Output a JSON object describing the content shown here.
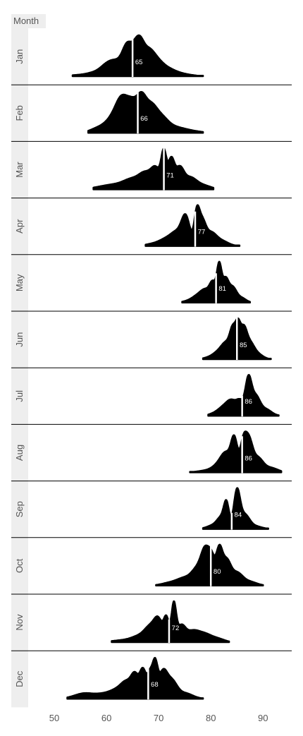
{
  "facet_header": "Month",
  "chart_data": {
    "type": "area",
    "subtype": "ridgeline-density",
    "facet_title": "Month",
    "x_ticks": [
      50,
      60,
      70,
      80,
      90
    ],
    "xlim": [
      45,
      95.5
    ],
    "median_label_color": "#ffffff",
    "fill_color": "#000000",
    "strip_color": "#eeeeee",
    "series": [
      {
        "name": "Jan",
        "range": [
          53.5,
          78.5
        ],
        "median": 65,
        "label": "65",
        "peaks": [
          [
            55,
            0.03,
            2
          ],
          [
            58,
            0.08,
            1.5
          ],
          [
            60,
            0.18,
            1.2
          ],
          [
            62,
            0.32,
            1.4
          ],
          [
            64,
            0.62,
            0.9
          ],
          [
            65.5,
            0.45,
            0.8
          ],
          [
            66.5,
            0.58,
            0.8
          ],
          [
            68,
            0.45,
            1
          ],
          [
            69.5,
            0.3,
            1.2
          ],
          [
            71.5,
            0.15,
            1.5
          ],
          [
            74,
            0.06,
            2
          ]
        ]
      },
      {
        "name": "Feb",
        "range": [
          56.5,
          78.5
        ],
        "median": 66,
        "label": "66",
        "peaks": [
          [
            58.5,
            0.08,
            1.5
          ],
          [
            61,
            0.18,
            1.3
          ],
          [
            63,
            0.52,
            1.2
          ],
          [
            65,
            0.38,
            1
          ],
          [
            66.7,
            0.48,
            0.9
          ],
          [
            68.5,
            0.38,
            1.1
          ],
          [
            70.5,
            0.22,
            1.3
          ],
          [
            73,
            0.08,
            1.8
          ],
          [
            76,
            0.03,
            2
          ]
        ]
      },
      {
        "name": "Mar",
        "range": [
          57.5,
          80.5
        ],
        "median": 71,
        "label": "71",
        "peaks": [
          [
            59,
            0.04,
            2
          ],
          [
            62,
            0.08,
            2
          ],
          [
            65,
            0.18,
            1.6
          ],
          [
            67.5,
            0.28,
            1.2
          ],
          [
            69.5,
            0.38,
            0.9
          ],
          [
            71,
            0.68,
            0.5
          ],
          [
            72.4,
            0.58,
            0.6
          ],
          [
            74,
            0.4,
            0.8
          ],
          [
            76,
            0.22,
            1.2
          ],
          [
            78.5,
            0.08,
            1.5
          ]
        ]
      },
      {
        "name": "Apr",
        "range": [
          67.5,
          85.5
        ],
        "median": 77,
        "label": "77",
        "peaks": [
          [
            69,
            0.05,
            1.5
          ],
          [
            71.5,
            0.15,
            1.3
          ],
          [
            73.5,
            0.28,
            1.1
          ],
          [
            75.2,
            0.65,
            0.8
          ],
          [
            77.3,
            0.7,
            0.5
          ],
          [
            78.3,
            0.55,
            0.7
          ],
          [
            80,
            0.28,
            1
          ],
          [
            82,
            0.12,
            1.3
          ]
        ]
      },
      {
        "name": "May",
        "range": [
          74.5,
          87.5
        ],
        "median": 81,
        "label": "81",
        "peaks": [
          [
            76,
            0.05,
            1.2
          ],
          [
            77.5,
            0.15,
            1
          ],
          [
            79,
            0.3,
            0.9
          ],
          [
            80.4,
            0.48,
            0.6
          ],
          [
            81.6,
            0.95,
            0.45
          ],
          [
            82.8,
            0.62,
            0.6
          ],
          [
            84.2,
            0.38,
            0.7
          ],
          [
            85.8,
            0.13,
            0.9
          ]
        ]
      },
      {
        "name": "Jun",
        "range": [
          78.5,
          91.5
        ],
        "median": 85,
        "label": "85",
        "peaks": [
          [
            80,
            0.04,
            1.2
          ],
          [
            81.5,
            0.12,
            1
          ],
          [
            83,
            0.3,
            0.9
          ],
          [
            84.2,
            0.5,
            0.55
          ],
          [
            85.2,
            0.62,
            0.5
          ],
          [
            86.3,
            0.55,
            0.6
          ],
          [
            87.5,
            0.3,
            0.8
          ],
          [
            89,
            0.1,
            1
          ]
        ]
      },
      {
        "name": "Jul",
        "range": [
          79.5,
          93
        ],
        "median": 86,
        "label": "86",
        "peaks": [
          [
            81,
            0.06,
            1.2
          ],
          [
            82.5,
            0.16,
            1
          ],
          [
            84,
            0.3,
            0.9
          ],
          [
            85.6,
            0.3,
            0.7
          ],
          [
            87.2,
            0.82,
            0.6
          ],
          [
            88.6,
            0.42,
            0.8
          ],
          [
            90.5,
            0.15,
            1.1
          ]
        ]
      },
      {
        "name": "Aug",
        "range": [
          76,
          93.5
        ],
        "median": 86,
        "label": "86",
        "peaks": [
          [
            79,
            0.03,
            1.5
          ],
          [
            81.5,
            0.12,
            1.2
          ],
          [
            83,
            0.3,
            1
          ],
          [
            84.5,
            0.55,
            0.6
          ],
          [
            86.2,
            0.5,
            0.6
          ],
          [
            87.3,
            0.52,
            0.7
          ],
          [
            89,
            0.25,
            1
          ],
          [
            91.5,
            0.08,
            1.3
          ]
        ]
      },
      {
        "name": "Sep",
        "range": [
          78.5,
          91
        ],
        "median": 84,
        "label": "84",
        "peaks": [
          [
            80.5,
            0.08,
            1.2
          ],
          [
            82,
            0.22,
            0.8
          ],
          [
            83,
            0.52,
            0.5
          ],
          [
            85,
            0.82,
            0.6
          ],
          [
            86.5,
            0.3,
            0.9
          ],
          [
            88.5,
            0.06,
            1.2
          ]
        ]
      },
      {
        "name": "Oct",
        "range": [
          69.5,
          90
        ],
        "median": 80,
        "label": "80",
        "peaks": [
          [
            72,
            0.04,
            1.5
          ],
          [
            75,
            0.12,
            1.5
          ],
          [
            77.5,
            0.25,
            1.1
          ],
          [
            79,
            0.5,
            0.8
          ],
          [
            80.2,
            0.35,
            0.6
          ],
          [
            81.6,
            0.55,
            0.6
          ],
          [
            83,
            0.38,
            0.8
          ],
          [
            85,
            0.2,
            1.1
          ],
          [
            87.5,
            0.06,
            1.3
          ]
        ]
      },
      {
        "name": "Nov",
        "range": [
          61,
          83.5
        ],
        "median": 72,
        "label": "72",
        "peaks": [
          [
            63,
            0.03,
            2
          ],
          [
            66.5,
            0.1,
            1.6
          ],
          [
            68.5,
            0.22,
            1.1
          ],
          [
            70,
            0.32,
            0.8
          ],
          [
            71.5,
            0.38,
            0.5
          ],
          [
            72.9,
            0.62,
            0.45
          ],
          [
            74.3,
            0.25,
            0.8
          ],
          [
            76.5,
            0.18,
            1.3
          ],
          [
            79,
            0.12,
            1.3
          ],
          [
            81.5,
            0.05,
            1.2
          ]
        ]
      },
      {
        "name": "Dec",
        "range": [
          52.5,
          78.5
        ],
        "median": 68,
        "label": "68",
        "peaks": [
          [
            54,
            0.03,
            1.5
          ],
          [
            56,
            0.08,
            1.5
          ],
          [
            59,
            0.07,
            1.5
          ],
          [
            62,
            0.15,
            1.5
          ],
          [
            64,
            0.25,
            1.1
          ],
          [
            65.5,
            0.35,
            0.7
          ],
          [
            67,
            0.5,
            0.6
          ],
          [
            68.3,
            0.4,
            0.5
          ],
          [
            69.3,
            0.6,
            0.5
          ],
          [
            70.8,
            0.45,
            0.8
          ],
          [
            72.5,
            0.3,
            1
          ],
          [
            75,
            0.1,
            1.5
          ]
        ]
      }
    ]
  }
}
